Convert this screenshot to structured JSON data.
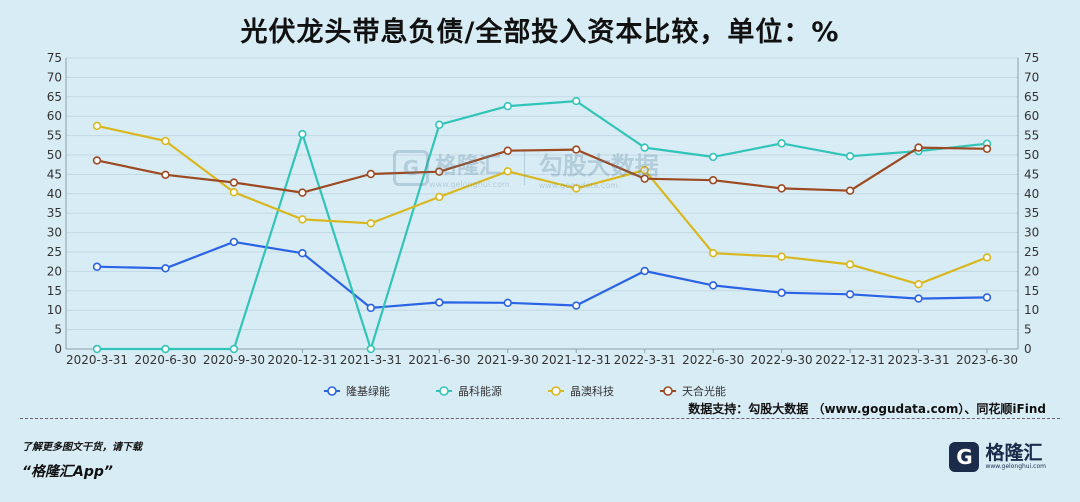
{
  "title": "光伏龙头带息负债/全部投入资本比较，单位：%",
  "source_text": "数据支持：勾股大数据 （www.gogudata.com）、同花顺iFind",
  "footer": {
    "note": "了解更多图文干货，请下载",
    "app": "“格隆汇App”"
  },
  "logo": {
    "glyph": "G",
    "name": "格隆汇",
    "url": "www.gelonghui.com"
  },
  "watermark": {
    "glyph": "G",
    "name": "格隆汇",
    "url": "www.gelonghui.com",
    "name2": "勾股大数据",
    "url2": "www.gogudata.com"
  },
  "chart_data": {
    "type": "line",
    "title": "光伏龙头带息负债/全部投入资本比较，单位：%",
    "categories": [
      "2020-3-31",
      "2020-6-30",
      "2020-9-30",
      "2020-12-31",
      "2021-3-31",
      "2021-6-30",
      "2021-9-30",
      "2021-12-31",
      "2022-3-31",
      "2022-6-30",
      "2022-9-30",
      "2022-12-31",
      "2023-3-31",
      "2023-6-30"
    ],
    "ylim": [
      0,
      75
    ],
    "yticks": [
      0,
      5,
      10,
      15,
      20,
      25,
      30,
      35,
      40,
      45,
      50,
      55,
      60,
      65,
      70,
      75
    ],
    "grid": true,
    "legend_position": "bottom",
    "series": [
      {
        "name": "隆基绿能",
        "color": "#2b63e6",
        "values": [
          21.2,
          20.8,
          27.6,
          24.7,
          10.6,
          12.0,
          11.9,
          11.2,
          20.1,
          16.4,
          14.5,
          14.1,
          13.0,
          13.3
        ]
      },
      {
        "name": "晶科能源",
        "color": "#33c4b8",
        "values": [
          0,
          0,
          0,
          55.4,
          0,
          57.8,
          62.6,
          63.9,
          51.9,
          49.5,
          53.0,
          49.7,
          51.0,
          52.9
        ]
      },
      {
        "name": "晶澳科技",
        "color": "#d9b81f",
        "values": [
          57.5,
          53.6,
          40.4,
          33.4,
          32.4,
          39.2,
          45.8,
          41.4,
          46.1,
          24.7,
          23.8,
          21.8,
          16.7,
          23.6
        ]
      },
      {
        "name": "天合光能",
        "color": "#9b4a22",
        "values": [
          48.6,
          44.9,
          42.9,
          40.3,
          45.1,
          45.7,
          51.1,
          51.4,
          43.9,
          43.5,
          41.4,
          40.8,
          51.9,
          51.6
        ]
      }
    ]
  }
}
